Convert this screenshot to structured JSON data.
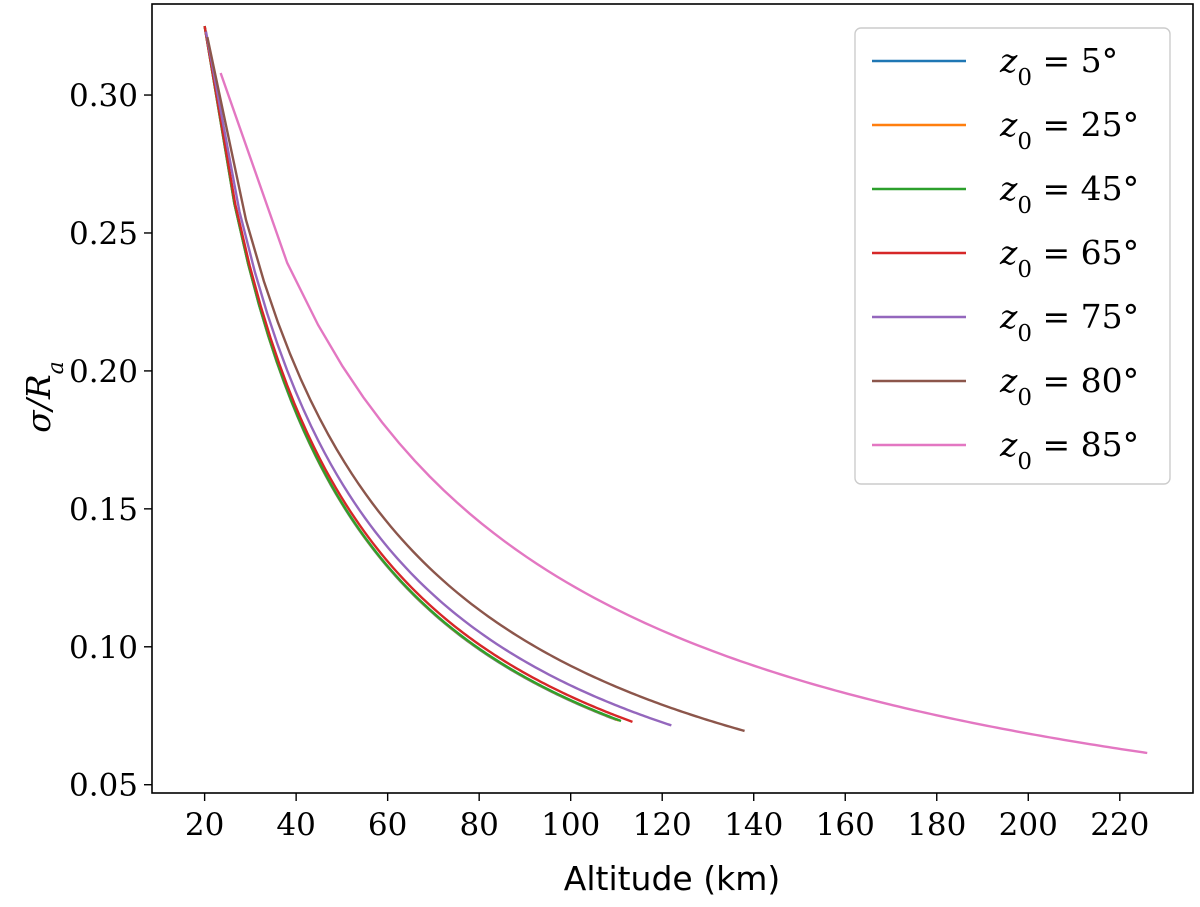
{
  "chart_data": {
    "type": "line",
    "xlabel": "Altitude (km)",
    "ylabel_symbol": "σ",
    "ylabel_rest": "/R",
    "ylabel_sub": "a",
    "xlim": [
      8.5,
      236
    ],
    "ylim": [
      0.047,
      0.333
    ],
    "xticks": [
      20,
      40,
      60,
      80,
      100,
      120,
      140,
      160,
      180,
      200,
      220
    ],
    "xtick_labels": [
      "20",
      "40",
      "60",
      "80",
      "100",
      "120",
      "140",
      "160",
      "180",
      "200",
      "220"
    ],
    "yticks": [
      0.05,
      0.1,
      0.15,
      0.2,
      0.25,
      0.3
    ],
    "ytick_labels": [
      "0.05",
      "0.10",
      "0.15",
      "0.20",
      "0.25",
      "0.30"
    ],
    "grid": false,
    "legend_position": "top-right",
    "series": [
      {
        "name": "z0 = 5°",
        "legend_var": "z",
        "legend_sub": "0",
        "legend_rest": " = 5°",
        "color": "#1f77b4",
        "x_start": 20.0,
        "y_start": 0.325,
        "x_end": 110.0,
        "y_end": 0.0735
      },
      {
        "name": "z0 = 25°",
        "legend_var": "z",
        "legend_sub": "0",
        "legend_rest": " = 25°",
        "color": "#ff7f0e",
        "x_start": 20.0,
        "y_start": 0.325,
        "x_end": 110.5,
        "y_end": 0.0733
      },
      {
        "name": "z0 = 45°",
        "legend_var": "z",
        "legend_sub": "0",
        "legend_rest": " = 45°",
        "color": "#2ca02c",
        "x_start": 20.0,
        "y_start": 0.325,
        "x_end": 111.0,
        "y_end": 0.0731
      },
      {
        "name": "z0 = 65°",
        "legend_var": "z",
        "legend_sub": "0",
        "legend_rest": " = 65°",
        "color": "#d62728",
        "x_start": 20.0,
        "y_start": 0.325,
        "x_end": 113.5,
        "y_end": 0.0728
      },
      {
        "name": "z0 = 75°",
        "legend_var": "z",
        "legend_sub": "0",
        "legend_rest": " = 75°",
        "color": "#9467bd",
        "x_start": 20.3,
        "y_start": 0.323,
        "x_end": 122.0,
        "y_end": 0.0715
      },
      {
        "name": "z0 = 80°",
        "legend_var": "z",
        "legend_sub": "0",
        "legend_rest": " = 80°",
        "color": "#8c564b",
        "x_start": 20.6,
        "y_start": 0.321,
        "x_end": 138.0,
        "y_end": 0.0695
      },
      {
        "name": "z0 = 85°",
        "legend_var": "z",
        "legend_sub": "0",
        "legend_rest": " = 85°",
        "color": "#e377c2",
        "x_start": 23.5,
        "y_start": 0.308,
        "x_end": 226.0,
        "y_end": 0.0615
      }
    ]
  }
}
